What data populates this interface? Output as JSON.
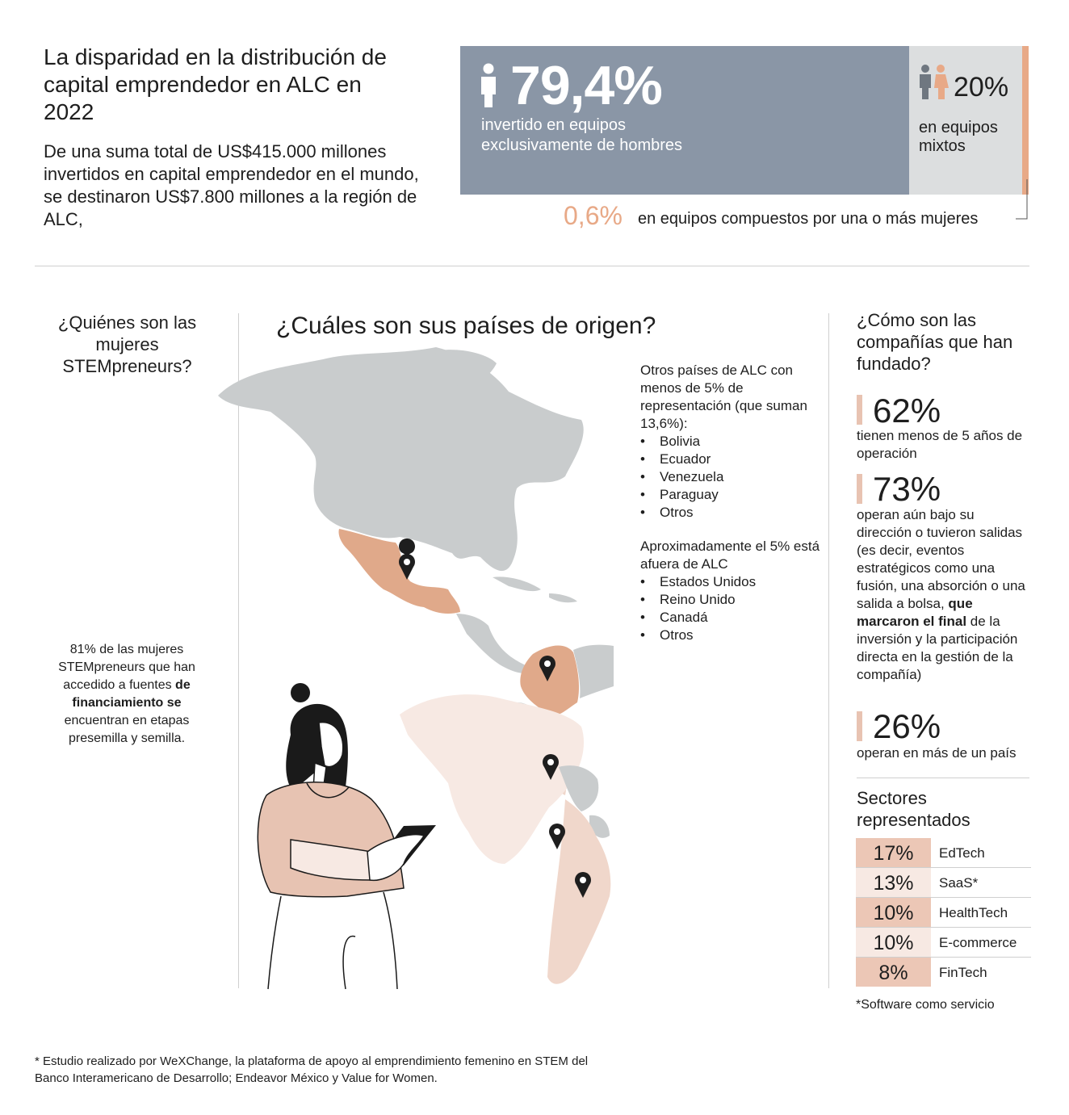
{
  "header": {
    "title": "La disparidad en la distribución de capital emprendedor en ALC en 2022",
    "subtitle": "De una suma total de US$415.000 millones invertidos en capital emprendedor en el mundo, se destinaron US$7.800 millones a la región de ALC,"
  },
  "chart_data": [
    {
      "type": "bar",
      "stacked": true,
      "orientation": "horizontal",
      "categories": [
        "invertido en equipos exclusivamente de hombres",
        "en equipos mixtos",
        "en equipos compuestos por una o más mujeres"
      ],
      "values": [
        79.4,
        20,
        0.6
      ],
      "value_labels": [
        "79,4%",
        "20%",
        "0,6%"
      ],
      "colors": [
        "#8a96a6",
        "#dcdedf",
        "#e8a987"
      ]
    },
    {
      "type": "table",
      "title": "Sectores representados",
      "categories": [
        "EdTech",
        "SaaS*",
        "HealthTech",
        "E-commerce",
        "FinTech"
      ],
      "values": [
        17,
        13,
        10,
        10,
        8
      ],
      "value_labels": [
        "17%",
        "13%",
        "10%",
        "10%",
        "8%"
      ],
      "colors": [
        "#ecc7b6",
        "#f7e9e3",
        "#ecc7b6",
        "#f7e9e3",
        "#ecc7b6"
      ]
    }
  ],
  "who": {
    "title": "¿Quiénes son las mujeres STEMpreneurs?",
    "stat_pre": "81% de las mujeres STEMpreneurs que han accedido a fuentes",
    "stat_bold": "de financiamiento se",
    "stat_post": "encuentran en etapas presemilla y semilla."
  },
  "map": {
    "title": "¿Cuáles son sus países de origen?",
    "other_heading": "Otros países de ALC con menos de 5% de representación (que suman 13,6%):",
    "other_list": [
      "Bolivia",
      "Ecuador",
      "Venezuela",
      "Paraguay",
      "Otros"
    ],
    "outside_heading": "Aproximadamente el 5% está afuera de ALC",
    "outside_list": [
      "Estados Unidos",
      "Reino Unido",
      "Canadá",
      "Otros"
    ],
    "colors": {
      "land": "#c9cccd",
      "highlight_strong": "#e0a98a",
      "highlight_medium": "#f0d7cb",
      "highlight_light": "#f7e9e3",
      "pin": "#1e1e1e"
    }
  },
  "companies": {
    "title": "¿Cómo son las compañías que han fundado?",
    "kpis": [
      {
        "value": "62%",
        "label": "tienen menos de 5 años de operación"
      },
      {
        "value": "73%",
        "label_pre": "operan aún bajo su dirección o tuvieron salidas (es decir, eventos estratégicos como una fusión, una absorción o una salida a bolsa,",
        "label_bold": "que marcaron el final",
        "label_post": "de la inversión y la participación directa en la gestión de la compañía)"
      },
      {
        "value": "26%",
        "label": "operan en más de un país"
      }
    ],
    "sectors_title": "Sectores representados",
    "sectors_note": "*Software como servicio"
  },
  "footnote": "* Estudio realizado por WeXChange, la plataforma de apoyo al emprendimiento femenino en STEM del Banco Interamericano de Desarrollo; Endeavor México y Value for Women."
}
